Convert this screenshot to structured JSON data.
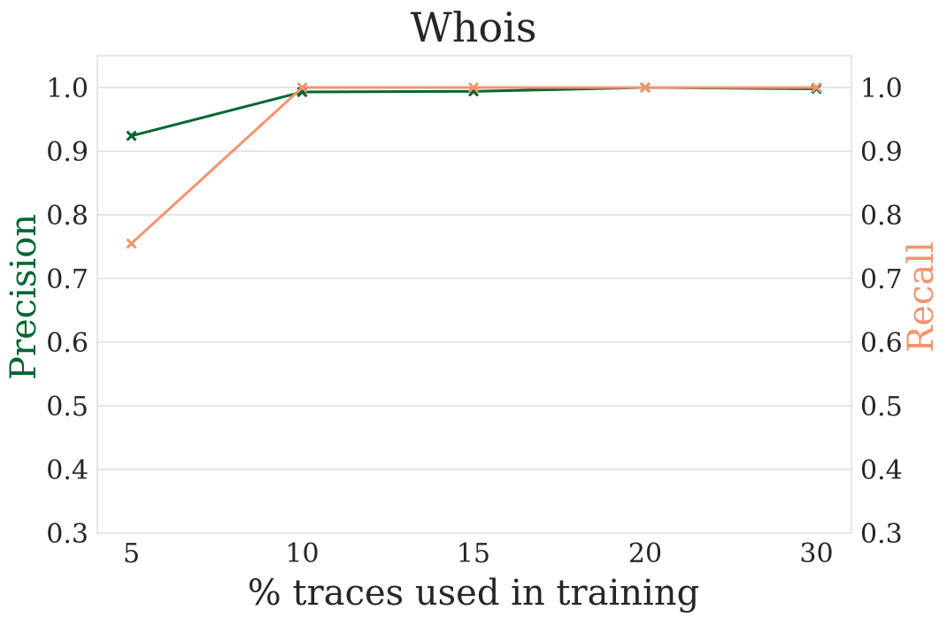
{
  "chart_data": {
    "type": "line",
    "title": "Whois",
    "xlabel": "% traces used in training",
    "ylabel_left": "Precision",
    "ylabel_right": "Recall",
    "categories": [
      "5",
      "10",
      "15",
      "20",
      "30"
    ],
    "ylim": [
      0.3,
      1.05
    ],
    "yticks": [
      0.3,
      0.4,
      0.5,
      0.6,
      0.7,
      0.8,
      0.9,
      1.0
    ],
    "ytick_labels": [
      "0.3",
      "0.4",
      "0.5",
      "0.6",
      "0.7",
      "0.8",
      "0.9",
      "1.0"
    ],
    "grid": "horizontal",
    "series": [
      {
        "name": "Precision",
        "axis": "left",
        "color": "#006633",
        "marker": "x",
        "values": [
          0.924,
          0.993,
          0.994,
          1.0,
          0.998
        ]
      },
      {
        "name": "Recall",
        "axis": "right",
        "color": "#f4946e",
        "marker": "x",
        "values": [
          0.755,
          1.0,
          1.0,
          1.0,
          1.0
        ]
      }
    ],
    "colors": {
      "grid": "#cccccc",
      "frame": "#cccccc",
      "text": "#262626"
    }
  }
}
